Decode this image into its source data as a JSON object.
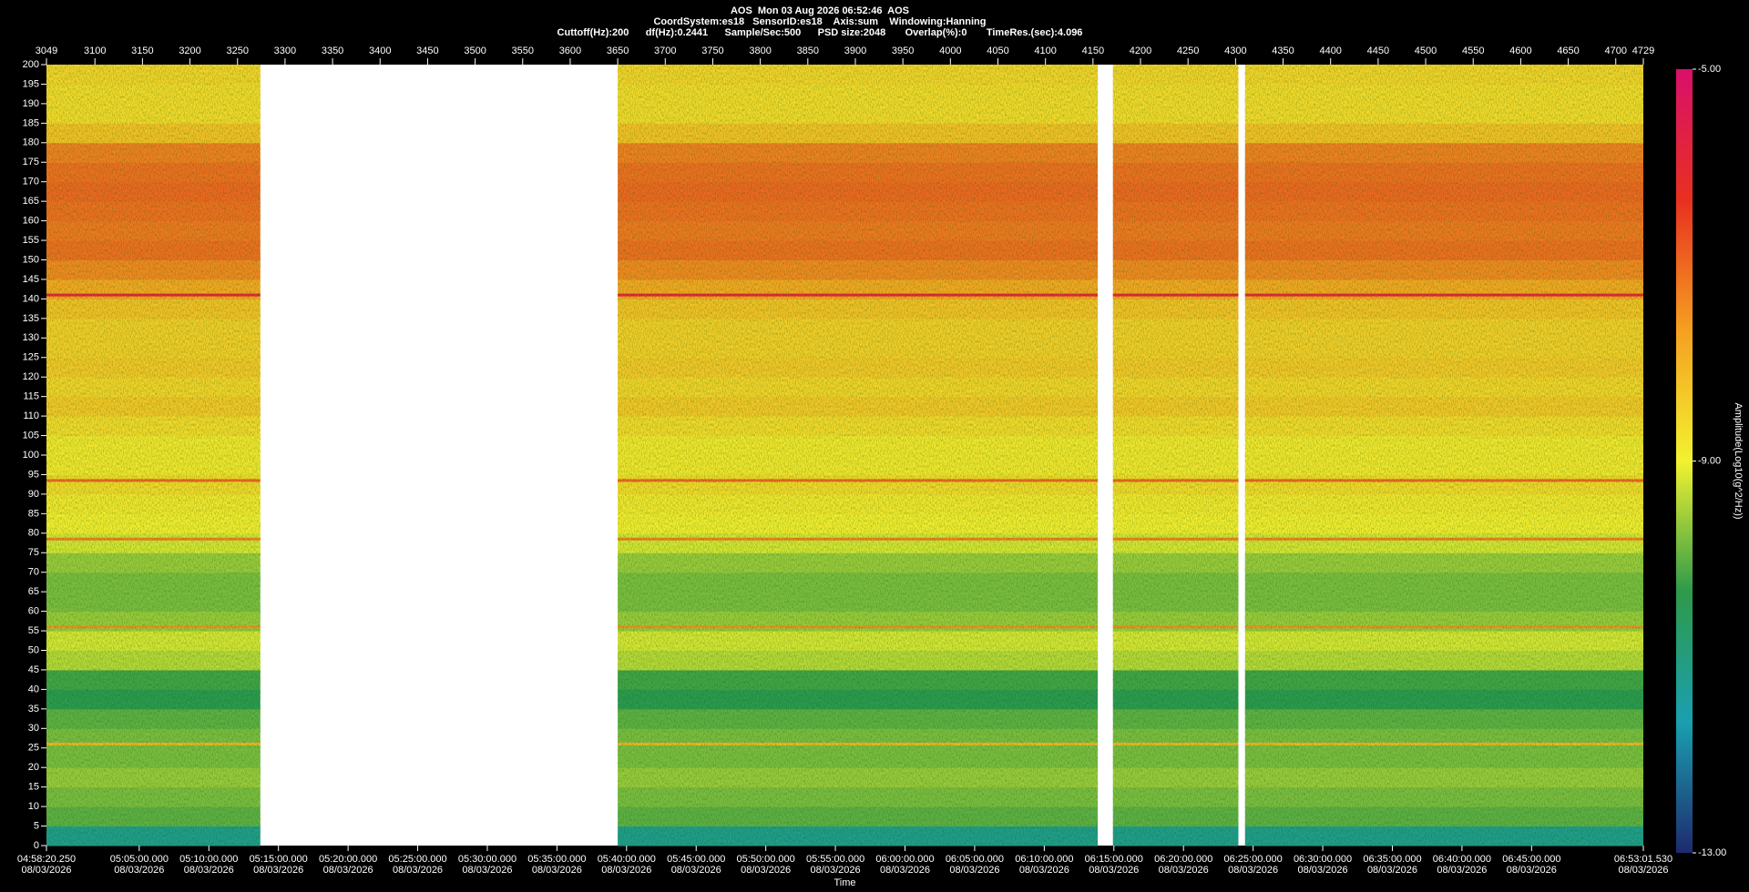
{
  "chart_data": {
    "type": "spectrogram",
    "title_lines": [
      "AOS  Mon 03 Aug 2026 06:52:46  AOS",
      "CoordSystem:es18   SensorID:es18    Axis:sum    Windowing:Hanning",
      "Cuttoff(Hz):200      df(Hz):0.2441      Sample/Sec:500      PSD size:2048       Overlap(%):0       TimeRes.(sec):4.096"
    ],
    "x2label": "Time",
    "colorbar_label": "Amplitude(Log10(g^2/Hz))",
    "xlim": [
      3049,
      4729
    ],
    "xticks": [
      3049,
      3100,
      3150,
      3200,
      3250,
      3300,
      3350,
      3400,
      3450,
      3500,
      3550,
      3600,
      3650,
      3700,
      3750,
      3800,
      3850,
      3900,
      3950,
      4000,
      4050,
      4100,
      4150,
      4200,
      4250,
      4300,
      4350,
      4400,
      4450,
      4500,
      4550,
      4600,
      4650,
      4700,
      4729
    ],
    "x2lim": [
      17900.25,
      24781.53
    ],
    "x2ticks": [
      {
        "value": 17900.25,
        "label": "04:58:20.250"
      },
      {
        "value": 18300,
        "label": "05:05:00.000"
      },
      {
        "value": 18600,
        "label": "05:10:00.000"
      },
      {
        "value": 18900,
        "label": "05:15:00.000"
      },
      {
        "value": 19200,
        "label": "05:20:00.000"
      },
      {
        "value": 19500,
        "label": "05:25:00.000"
      },
      {
        "value": 19800,
        "label": "05:30:00.000"
      },
      {
        "value": 20100,
        "label": "05:35:00.000"
      },
      {
        "value": 20400,
        "label": "05:40:00.000"
      },
      {
        "value": 20700,
        "label": "05:45:00.000"
      },
      {
        "value": 21000,
        "label": "05:50:00.000"
      },
      {
        "value": 21300,
        "label": "05:55:00.000"
      },
      {
        "value": 21600,
        "label": "06:00:00.000"
      },
      {
        "value": 21900,
        "label": "06:05:00.000"
      },
      {
        "value": 22200,
        "label": "06:10:00.000"
      },
      {
        "value": 22500,
        "label": "06:15:00.000"
      },
      {
        "value": 22800,
        "label": "06:20:00.000"
      },
      {
        "value": 23100,
        "label": "06:25:00.000"
      },
      {
        "value": 23400,
        "label": "06:30:00.000"
      },
      {
        "value": 23700,
        "label": "06:35:00.000"
      },
      {
        "value": 24000,
        "label": "06:40:00.000"
      },
      {
        "value": 24300,
        "label": "06:45:00.000"
      },
      {
        "value": 24781.53,
        "label": "06:53:01.530"
      }
    ],
    "x2tick_date": "08/03/2026",
    "ylim": [
      0,
      200
    ],
    "yticks": [
      0,
      5,
      10,
      15,
      20,
      25,
      30,
      35,
      40,
      45,
      50,
      55,
      60,
      65,
      70,
      75,
      80,
      85,
      90,
      95,
      100,
      105,
      110,
      115,
      120,
      125,
      130,
      135,
      140,
      145,
      150,
      155,
      160,
      165,
      170,
      175,
      180,
      185,
      190,
      195,
      200
    ],
    "zlim": [
      -13,
      -5
    ],
    "zticks": [
      {
        "value": -5,
        "label": "-5.00"
      },
      {
        "value": -9,
        "label": "-9.00"
      },
      {
        "value": -13,
        "label": "-13.00"
      }
    ],
    "colormap": [
      "#1e2a6e",
      "#1a9fb0",
      "#2e9a4a",
      "#f2f230",
      "#f5a020",
      "#e83020",
      "#d8106a"
    ],
    "segments": [
      [
        3049,
        3274
      ],
      [
        3650,
        4155
      ],
      [
        4171,
        4303
      ],
      [
        4310,
        4729
      ]
    ],
    "frequency_bins": [
      0,
      5,
      10,
      15,
      20,
      25,
      30,
      35,
      40,
      45,
      50,
      55,
      60,
      65,
      70,
      75,
      80,
      85,
      90,
      95,
      100,
      105,
      110,
      115,
      120,
      125,
      130,
      135,
      140,
      145,
      150,
      155,
      160,
      165,
      170,
      175,
      180,
      185,
      190,
      195,
      200
    ],
    "z": [
      -11.2,
      -10,
      -9.8,
      -9.6,
      -9.8,
      -9.8,
      -10,
      -10.4,
      -10.2,
      -9.4,
      -9.2,
      -9.6,
      -9.8,
      -9.8,
      -9.6,
      -9.2,
      -8.9,
      -8.8,
      -8.6,
      -8.8,
      -8.8,
      -8.6,
      -8.3,
      -8.5,
      -8.3,
      -8.4,
      -8.4,
      -8.2,
      -7.8,
      -7.4,
      -7.1,
      -7.2,
      -7.1,
      -7,
      -7.1,
      -7.3,
      -8.2,
      -8.6,
      -8.6,
      -8.5
    ],
    "lines": [
      {
        "freq": 141,
        "amplitude": -6
      },
      {
        "freq": 93.5,
        "amplitude": -7
      },
      {
        "freq": 78.5,
        "amplitude": -7.3
      },
      {
        "freq": 56,
        "amplitude": -7.5
      },
      {
        "freq": 26,
        "amplitude": -8
      }
    ]
  }
}
